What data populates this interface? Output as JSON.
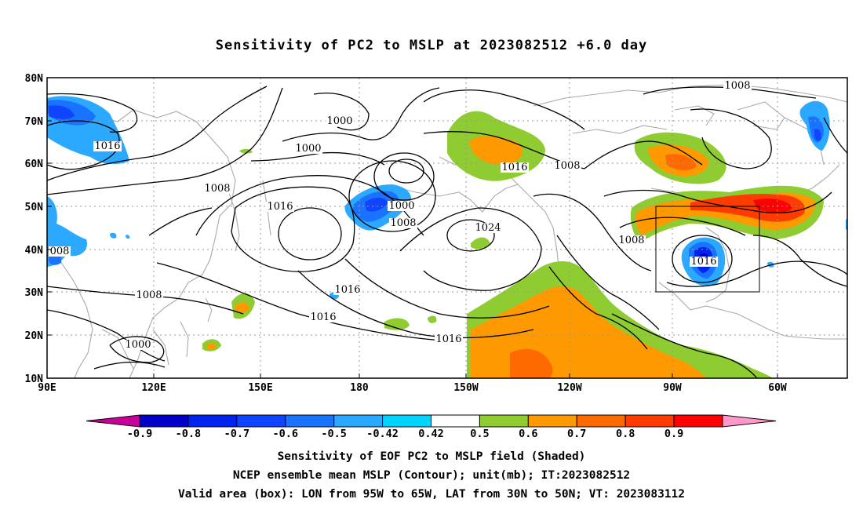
{
  "title": "Sensitivity of PC2 to MSLP at 2023082512 +6.0 day",
  "lat_ticks": [
    "80N",
    "70N",
    "60N",
    "50N",
    "40N",
    "30N",
    "20N",
    "10N"
  ],
  "lon_ticks": [
    "90E",
    "120E",
    "150E",
    "180",
    "150W",
    "120W",
    "90W",
    "60W"
  ],
  "contour_labels": [
    {
      "text": "1008",
      "name": "isobar-label-1008-ne"
    },
    {
      "text": "1000",
      "name": "isobar-label-1000-north-pacific"
    },
    {
      "text": "1000",
      "name": "isobar-label-1000-bering"
    },
    {
      "text": "1016",
      "name": "isobar-label-1016-siberia"
    },
    {
      "text": "1008",
      "name": "isobar-label-1008-asia"
    },
    {
      "text": "1016",
      "name": "isobar-label-1016-west-pacific"
    },
    {
      "text": "1000",
      "name": "isobar-label-1000-low-center"
    },
    {
      "text": "1008",
      "name": "isobar-label-1008-low"
    },
    {
      "text": "1016",
      "name": "isobar-label-1016-gulf-alaska"
    },
    {
      "text": "1008",
      "name": "isobar-label-1008-canada"
    },
    {
      "text": "1024",
      "name": "isobar-label-1024-high"
    },
    {
      "text": "008",
      "name": "isobar-label-008-west-edge"
    },
    {
      "text": "1008",
      "name": "isobar-label-1008-south-asia"
    },
    {
      "text": "1016",
      "name": "isobar-label-1016-pacific-south"
    },
    {
      "text": "1016",
      "name": "isobar-label-1016-central-pacific"
    },
    {
      "text": "1000",
      "name": "isobar-label-1000-south-china-sea"
    },
    {
      "text": "1016",
      "name": "isobar-label-1016-east-pacific"
    },
    {
      "text": "1008",
      "name": "isobar-label-1008-great-plains"
    },
    {
      "text": "1016",
      "name": "isobar-label-1016-atlantic"
    }
  ],
  "colorbar": {
    "labels": [
      "-0.9",
      "-0.8",
      "-0.7",
      "-0.6",
      "-0.5",
      "-0.42",
      "0.42",
      "0.5",
      "0.6",
      "0.7",
      "0.8",
      "0.9"
    ],
    "colors": [
      "#cc0099",
      "#0000c8",
      "#0022ee",
      "#1144ff",
      "#1a73ff",
      "#2ba8ff",
      "#00d4ff",
      "#ffffff",
      "#8ecc32",
      "#ff9900",
      "#ff6a00",
      "#ff3c00",
      "#ff0000",
      "#ff99cc"
    ]
  },
  "captions": [
    "Sensitivity of EOF PC2 to MSLP field (Shaded)",
    "NCEP ensemble mean MSLP (Contour); unit(mb); IT:2023082512",
    "Valid area (box): LON from 95W to 65W, LAT from 30N to 50N; VT: 2023083112"
  ]
}
